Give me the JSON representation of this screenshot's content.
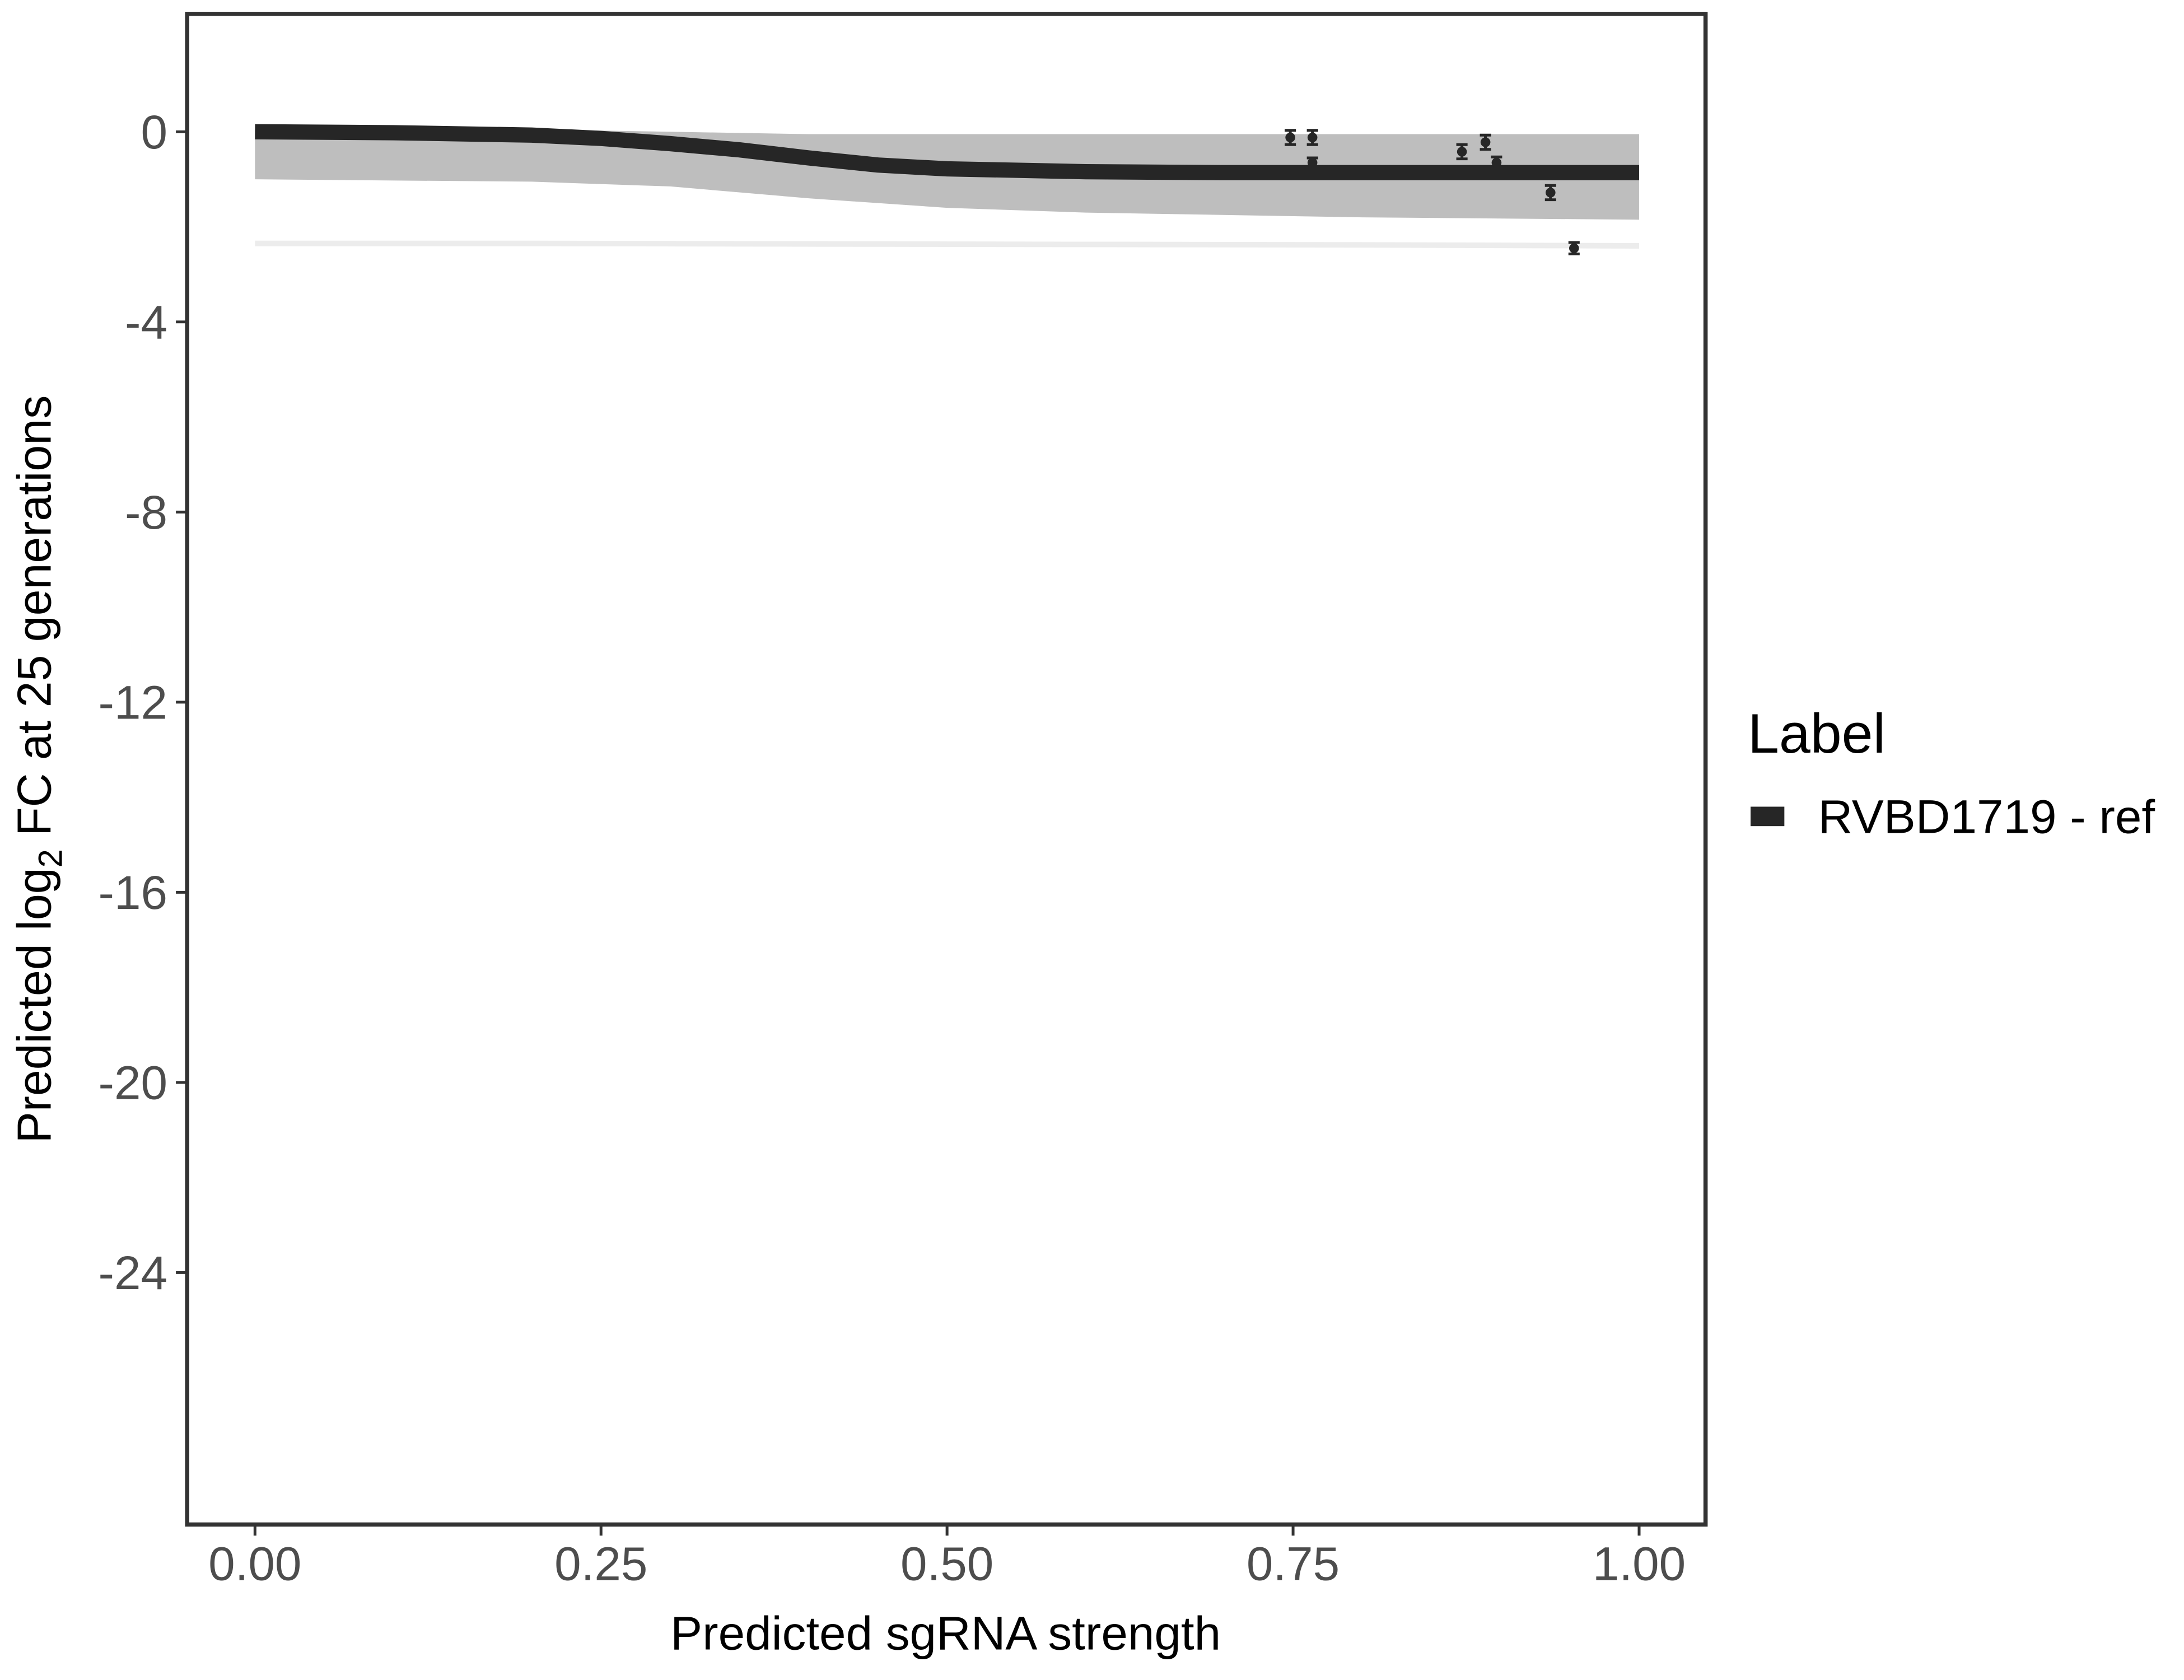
{
  "chart_data": {
    "type": "line",
    "x_label": "Predicted sgRNA strength",
    "y_label": {
      "prefix": "Predicted  log",
      "sub": "2",
      "suffix": " FC at 25 generations"
    },
    "xlim": [
      -0.049,
      1.048
    ],
    "ylim": [
      -29.3,
      2.48
    ],
    "xticks": [
      {
        "value": 0,
        "label": "0.00"
      },
      {
        "value": 0.25,
        "label": "0.25"
      },
      {
        "value": 0.5,
        "label": "0.50"
      },
      {
        "value": 0.75,
        "label": "0.75"
      },
      {
        "value": 1,
        "label": "1.00"
      }
    ],
    "yticks": [
      0,
      -4,
      -8,
      -12,
      -16,
      -20,
      -24
    ],
    "legend_title": "Label",
    "series": [
      {
        "name": "RVBD1719 - ref",
        "color": "#262626",
        "x": [
          0,
          0.1,
          0.2,
          0.25,
          0.3,
          0.35,
          0.4,
          0.45,
          0.5,
          0.6,
          0.7,
          0.8,
          0.9,
          1.0
        ],
        "values": [
          0,
          -0.02,
          -0.07,
          -0.14,
          -0.25,
          -0.38,
          -0.55,
          -0.7,
          -0.78,
          -0.84,
          -0.86,
          -0.86,
          -0.86,
          -0.86
        ]
      }
    ],
    "band": {
      "color": "#b3b3b3",
      "x": [
        0,
        0.2,
        0.3,
        0.4,
        0.5,
        0.6,
        0.8,
        1.0
      ],
      "upper": [
        0.05,
        0.05,
        0.0,
        -0.05,
        -0.05,
        -0.05,
        -0.05,
        -0.05
      ],
      "lower": [
        -1.0,
        -1.05,
        -1.15,
        -1.4,
        -1.6,
        -1.7,
        -1.8,
        -1.85
      ]
    },
    "draws": {
      "color": "#ececec",
      "x": [
        0,
        0.2,
        0.4,
        0.6,
        0.8,
        1.0
      ],
      "values": [
        -2.35,
        -2.35,
        -2.36,
        -2.37,
        -2.38,
        -2.4
      ]
    },
    "points": {
      "color": "#262626",
      "x": [
        0.748,
        0.764,
        0.764,
        0.872,
        0.889,
        0.897,
        0.936,
        0.953
      ],
      "values": [
        -0.12,
        -0.12,
        -0.65,
        -0.42,
        -0.22,
        -0.65,
        -1.28,
        -2.45
      ],
      "errors": [
        0.15,
        0.15,
        0.1,
        0.15,
        0.15,
        0.12,
        0.15,
        0.12
      ]
    }
  }
}
